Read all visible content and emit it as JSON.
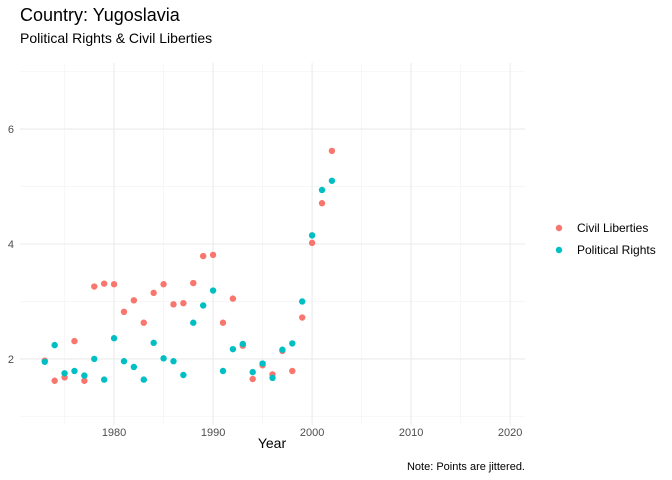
{
  "chart_data": {
    "type": "scatter",
    "title": "Country: Yugoslavia",
    "subtitle": "Political Rights & Civil Liberties",
    "xlabel": "Year",
    "ylabel": "",
    "caption": "Note: Points are jittered.",
    "xlim": [
      1970.5,
      2021.5
    ],
    "ylim": [
      0.85,
      7.15
    ],
    "xticks": [
      1980,
      1990,
      2000,
      2010,
      2020
    ],
    "yticks": [
      2,
      4,
      6
    ],
    "grid": true,
    "legend": "right",
    "series": [
      {
        "name": "Civil Liberties",
        "color": "#F8766D",
        "points": [
          [
            1973,
            1.97
          ],
          [
            1974,
            1.62
          ],
          [
            1975,
            1.68
          ],
          [
            1976,
            2.31
          ],
          [
            1977,
            1.62
          ],
          [
            1978,
            3.26
          ],
          [
            1979,
            3.31
          ],
          [
            1980,
            3.3
          ],
          [
            1981,
            2.82
          ],
          [
            1982,
            3.02
          ],
          [
            1983,
            2.63
          ],
          [
            1984,
            3.15
          ],
          [
            1985,
            3.3
          ],
          [
            1986,
            2.95
          ],
          [
            1987,
            2.97
          ],
          [
            1988,
            3.32
          ],
          [
            1989,
            3.79
          ],
          [
            1990,
            3.81
          ],
          [
            1991,
            2.63
          ],
          [
            1992,
            3.05
          ],
          [
            1993,
            2.23
          ],
          [
            1994,
            1.65
          ],
          [
            1995,
            1.89
          ],
          [
            1996,
            1.73
          ],
          [
            1997,
            2.14
          ],
          [
            1998,
            1.79
          ],
          [
            1999,
            2.72
          ],
          [
            2000,
            4.02
          ],
          [
            2001,
            4.71
          ],
          [
            2002,
            5.62
          ]
        ]
      },
      {
        "name": "Political Rights",
        "color": "#00BFC4",
        "points": [
          [
            1973,
            1.95
          ],
          [
            1974,
            2.24
          ],
          [
            1975,
            1.75
          ],
          [
            1976,
            1.79
          ],
          [
            1977,
            1.71
          ],
          [
            1978,
            2.0
          ],
          [
            1979,
            1.64
          ],
          [
            1980,
            2.36
          ],
          [
            1981,
            1.96
          ],
          [
            1982,
            1.86
          ],
          [
            1983,
            1.64
          ],
          [
            1984,
            2.28
          ],
          [
            1985,
            2.01
          ],
          [
            1986,
            1.96
          ],
          [
            1987,
            1.72
          ],
          [
            1988,
            2.63
          ],
          [
            1989,
            2.93
          ],
          [
            1990,
            3.19
          ],
          [
            1991,
            1.79
          ],
          [
            1992,
            2.17
          ],
          [
            1993,
            2.26
          ],
          [
            1994,
            1.77
          ],
          [
            1995,
            1.92
          ],
          [
            1996,
            1.67
          ],
          [
            1997,
            2.16
          ],
          [
            1998,
            2.27
          ],
          [
            1999,
            3.0
          ],
          [
            2000,
            4.15
          ],
          [
            2001,
            4.94
          ],
          [
            2002,
            5.1
          ]
        ]
      }
    ]
  }
}
